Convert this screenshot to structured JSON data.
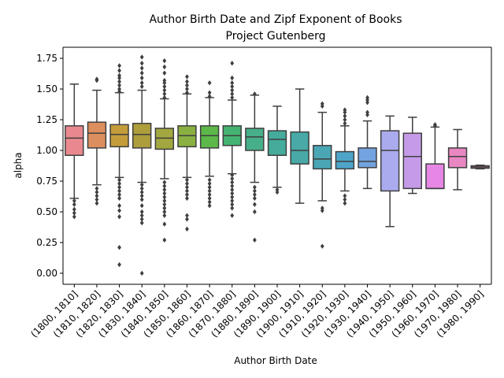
{
  "chart_data": {
    "type": "box",
    "title": "Author Birth Date and Zipf Exponent of Books",
    "subtitle": "Project Gutenberg",
    "xlabel": "Author Birth Date",
    "ylabel": "alpha",
    "ylim": [
      -0.09,
      1.84
    ],
    "yticks": [
      "0.00",
      "0.25",
      "0.50",
      "0.75",
      "1.00",
      "1.25",
      "1.50",
      "1.75"
    ],
    "ytick_values": [
      0,
      0.25,
      0.5,
      0.75,
      1.0,
      1.25,
      1.5,
      1.75
    ],
    "grid": false,
    "categories": [
      "(1800, 1810]",
      "(1810, 1820]",
      "(1820, 1830]",
      "(1830, 1840]",
      "(1840, 1850]",
      "(1850, 1860]",
      "(1860, 1870]",
      "(1870, 1880]",
      "(1880, 1890]",
      "(1890, 1900]",
      "(1900, 1910]",
      "(1910, 1920]",
      "(1920, 1930]",
      "(1930, 1940]",
      "(1940, 1950]",
      "(1950, 1960]",
      "(1960, 1970]",
      "(1970, 1980]",
      "(1980, 1990]"
    ],
    "boxes": [
      {
        "whislo": 0.61,
        "q1": 0.96,
        "med": 1.1,
        "q3": 1.2,
        "whishi": 1.54,
        "color": "#e9898f",
        "fliers": [
          0.46,
          0.49,
          0.52,
          0.56,
          0.59
        ]
      },
      {
        "whislo": 0.72,
        "q1": 1.02,
        "med": 1.14,
        "q3": 1.23,
        "whishi": 1.49,
        "color": "#dc8e5e",
        "fliers": [
          0.57,
          0.6,
          0.63,
          0.66,
          0.69,
          1.57,
          1.58
        ]
      },
      {
        "whislo": 0.78,
        "q1": 1.03,
        "med": 1.13,
        "q3": 1.21,
        "whishi": 1.47,
        "color": "#c49c3a",
        "fliers": [
          0.07,
          0.21,
          0.46,
          0.51,
          0.55,
          0.61,
          0.64,
          0.67,
          0.7,
          0.73,
          0.76,
          1.48,
          1.5,
          1.53,
          1.56,
          1.59,
          1.61,
          1.65,
          1.69
        ]
      },
      {
        "whislo": 0.74,
        "q1": 1.02,
        "med": 1.13,
        "q3": 1.22,
        "whishi": 1.49,
        "color": "#ad9d3b",
        "fliers": [
          0.0,
          0.41,
          0.44,
          0.47,
          0.5,
          0.55,
          0.6,
          0.63,
          0.66,
          0.69,
          0.72,
          1.52,
          1.55,
          1.59,
          1.63,
          1.67,
          1.71,
          1.76
        ]
      },
      {
        "whislo": 0.77,
        "q1": 1.01,
        "med": 1.1,
        "q3": 1.18,
        "whishi": 1.42,
        "color": "#a2a83f",
        "fliers": [
          0.27,
          0.4,
          0.47,
          0.5,
          0.53,
          0.56,
          0.59,
          0.62,
          0.65,
          0.68,
          0.71,
          0.74,
          1.43,
          1.46,
          1.49,
          1.52,
          1.55,
          1.57,
          1.63,
          1.68,
          1.73
        ]
      },
      {
        "whislo": 0.78,
        "q1": 1.03,
        "med": 1.12,
        "q3": 1.2,
        "whishi": 1.46,
        "color": "#8bb042",
        "fliers": [
          0.36,
          0.44,
          0.47,
          0.61,
          0.64,
          0.67,
          0.7,
          0.73,
          0.76,
          1.47,
          1.5,
          1.53,
          1.56,
          1.6
        ]
      },
      {
        "whislo": 0.79,
        "q1": 1.02,
        "med": 1.12,
        "q3": 1.2,
        "whishi": 1.43,
        "color": "#5cb848",
        "fliers": [
          0.55,
          0.58,
          0.61,
          0.64,
          0.67,
          0.7,
          0.73,
          0.76,
          1.44,
          1.47,
          1.55
        ]
      },
      {
        "whislo": 0.81,
        "q1": 1.04,
        "med": 1.12,
        "q3": 1.2,
        "whishi": 1.41,
        "color": "#44b371",
        "fliers": [
          0.47,
          0.53,
          0.56,
          0.59,
          0.62,
          0.65,
          0.68,
          0.71,
          0.74,
          0.77,
          0.8,
          1.43,
          1.46,
          1.49,
          1.52,
          1.55,
          1.59,
          1.71
        ]
      },
      {
        "whislo": 0.74,
        "q1": 1.0,
        "med": 1.11,
        "q3": 1.18,
        "whishi": 1.45,
        "color": "#47af8a",
        "fliers": [
          0.27,
          0.5,
          0.56,
          0.61,
          0.64,
          0.67,
          0.7,
          1.46
        ]
      },
      {
        "whislo": 0.7,
        "q1": 0.96,
        "med": 1.09,
        "q3": 1.16,
        "whishi": 1.36,
        "color": "#45ab9b",
        "fliers": [
          0.66,
          0.68
        ]
      },
      {
        "whislo": 0.57,
        "q1": 0.89,
        "med": 1.0,
        "q3": 1.15,
        "whishi": 1.5,
        "color": "#48a9a7",
        "fliers": []
      },
      {
        "whislo": 0.59,
        "q1": 0.85,
        "med": 0.93,
        "q3": 1.04,
        "whishi": 1.31,
        "color": "#4aa6b5",
        "fliers": [
          0.22,
          0.51,
          0.53,
          1.36,
          1.38
        ]
      },
      {
        "whislo": 0.67,
        "q1": 0.85,
        "med": 0.91,
        "q3": 0.99,
        "whishi": 1.2,
        "color": "#4ea4c8",
        "fliers": [
          0.57,
          0.6,
          0.63,
          1.22,
          1.25,
          1.28,
          1.31,
          1.33
        ]
      },
      {
        "whislo": 0.69,
        "q1": 0.86,
        "med": 0.91,
        "q3": 1.02,
        "whishi": 1.24,
        "color": "#73a3e0",
        "fliers": [
          1.29,
          1.31,
          1.39,
          1.41,
          1.43
        ]
      },
      {
        "whislo": 0.38,
        "q1": 0.67,
        "med": 1.0,
        "q3": 1.16,
        "whishi": 1.28,
        "color": "#aaaaee",
        "fliers": []
      },
      {
        "whislo": 0.65,
        "q1": 0.69,
        "med": 0.95,
        "q3": 1.14,
        "whishi": 1.27,
        "color": "#c59be8",
        "fliers": []
      },
      {
        "whislo": 0.69,
        "q1": 0.69,
        "med": 0.69,
        "q3": 0.89,
        "whishi": 1.19,
        "color": "#e687e6",
        "fliers": [
          1.2,
          1.21
        ]
      },
      {
        "whislo": 0.68,
        "q1": 0.86,
        "med": 0.95,
        "q3": 1.02,
        "whishi": 1.17,
        "color": "#e887c2",
        "fliers": []
      },
      {
        "whislo": 0.85,
        "q1": 0.855,
        "med": 0.865,
        "q3": 0.875,
        "whishi": 0.88,
        "color": "#e78bab",
        "fliers": []
      }
    ]
  }
}
